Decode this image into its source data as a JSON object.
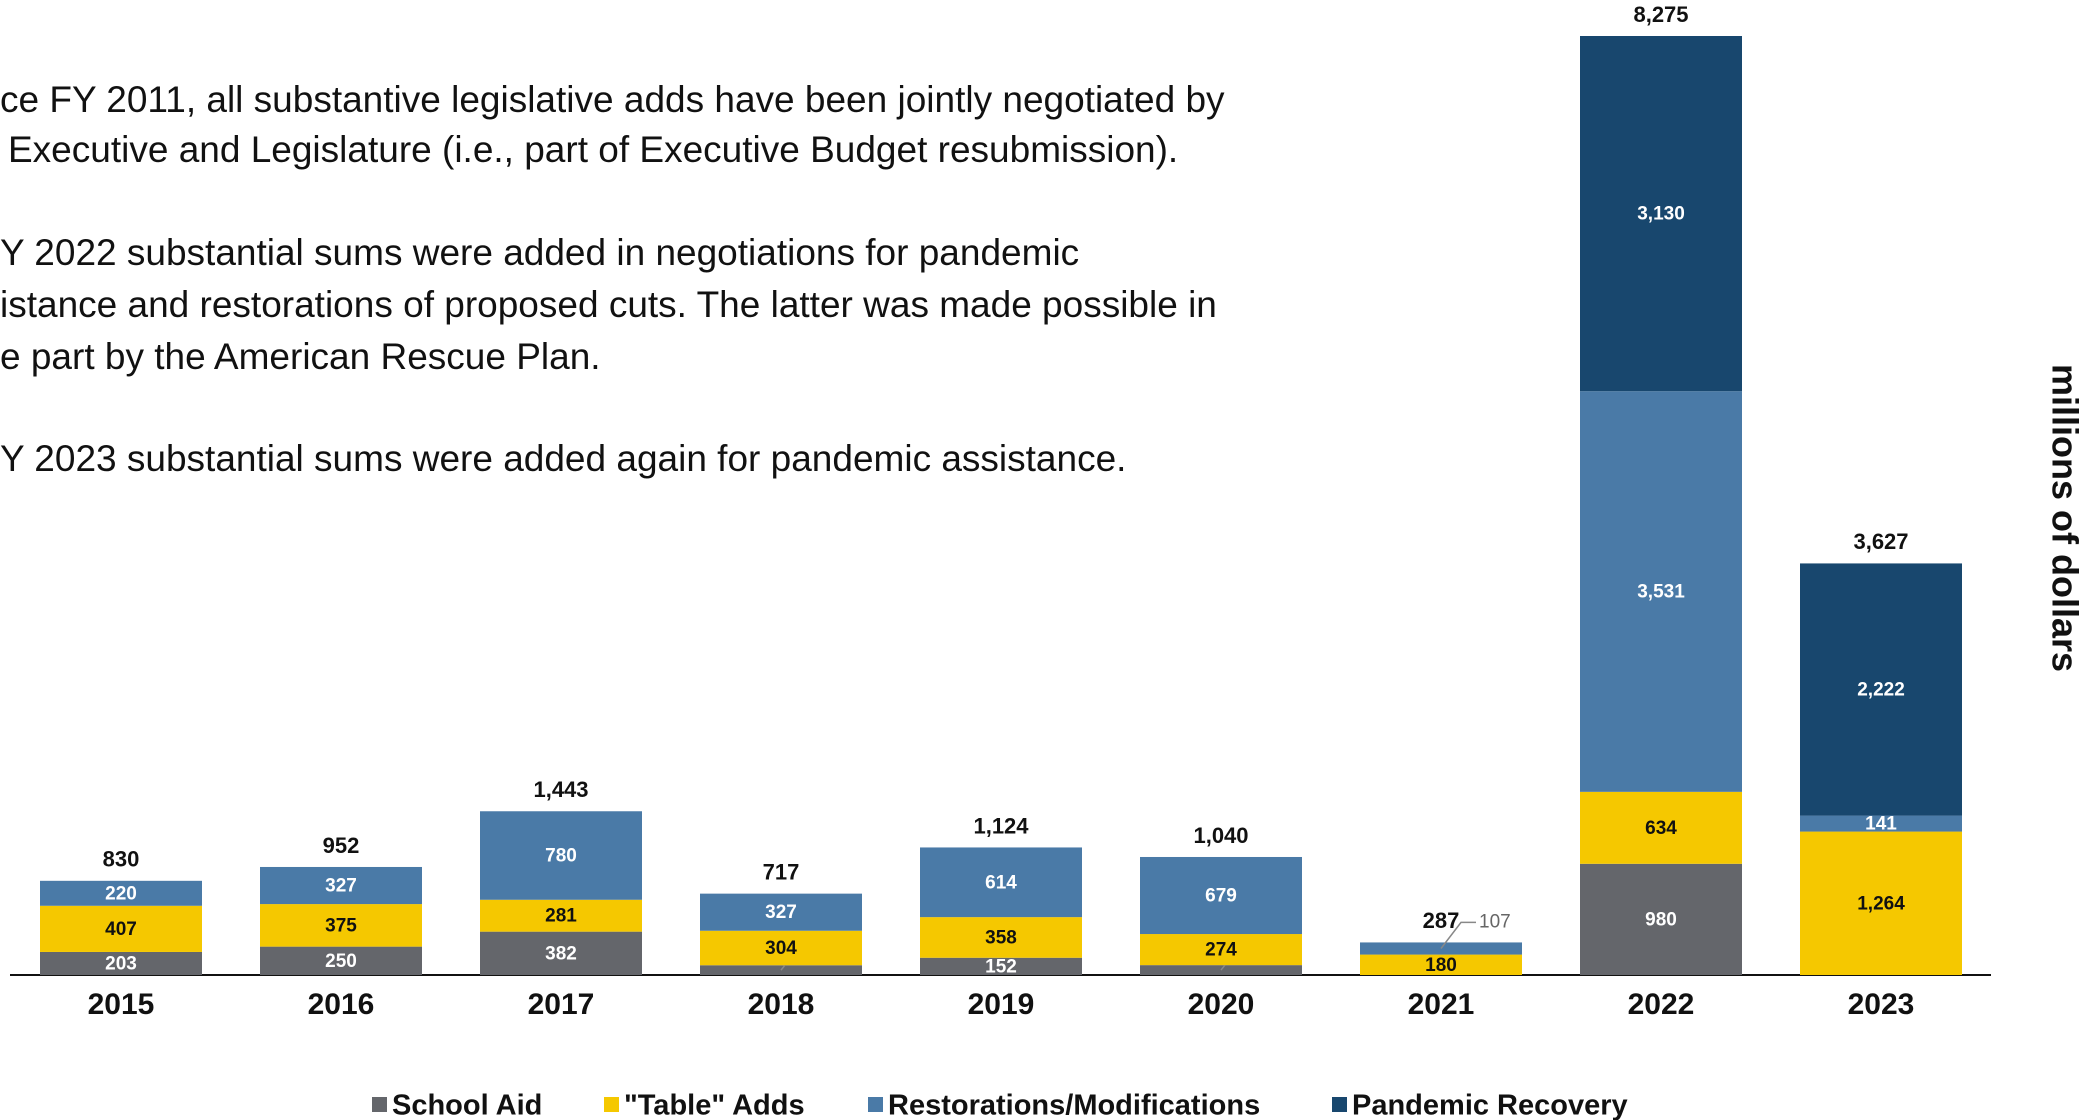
{
  "notes": [
    "ce FY 2011, all substantive legislative adds have been jointly negotiated by",
    "Executive and Legislature (i.e., part of Executive Budget resubmission).",
    "Y 2022 substantial sums were added in negotiations for pandemic",
    "istance and restorations of proposed cuts. The latter was made possible in",
    "e part by the American Rescue Plan.",
    "Y 2023 substantial sums were added again for pandemic assistance."
  ],
  "chart_data": {
    "type": "stacked_bar",
    "y_label": "millions of dollars",
    "categories": [
      "2015",
      "2016",
      "2017",
      "2018",
      "2019",
      "2020",
      "2021",
      "2022",
      "2023"
    ],
    "series": [
      {
        "name": "School Aid",
        "color": "#64666b",
        "values": [
          203,
          250,
          382,
          86,
          152,
          87,
          null,
          980,
          null
        ]
      },
      {
        "name": "\"Table\" Adds",
        "color": "#f5c800",
        "values": [
          407,
          375,
          281,
          304,
          358,
          274,
          180,
          634,
          1264
        ]
      },
      {
        "name": "Restorations/Modifications",
        "color": "#4a7aa7",
        "values": [
          220,
          327,
          780,
          327,
          614,
          679,
          107,
          3531,
          141
        ]
      },
      {
        "name": "Pandemic Recovery",
        "color": "#18476e",
        "values": [
          null,
          null,
          null,
          null,
          null,
          null,
          null,
          3130,
          2222
        ]
      }
    ],
    "totals": [
      830,
      952,
      1443,
      717,
      1124,
      1040,
      287,
      8275,
      3627
    ],
    "value_labels_totals": [
      "830",
      "952",
      "1,443",
      "717",
      "1,124",
      "1,040",
      "287",
      "8,275",
      "3,627"
    ],
    "value_labels": [
      [
        "203",
        "250",
        "382",
        "86",
        "152",
        "87",
        null,
        "980",
        null
      ],
      [
        "407",
        "375",
        "281",
        "304",
        "358",
        "274",
        "180",
        "634",
        "1,264"
      ],
      [
        "220",
        "327",
        "780",
        "327",
        "614",
        "679",
        "107",
        "3,531",
        "141"
      ],
      [
        null,
        null,
        null,
        null,
        null,
        null,
        null,
        "3,130",
        "2,222"
      ]
    ]
  }
}
